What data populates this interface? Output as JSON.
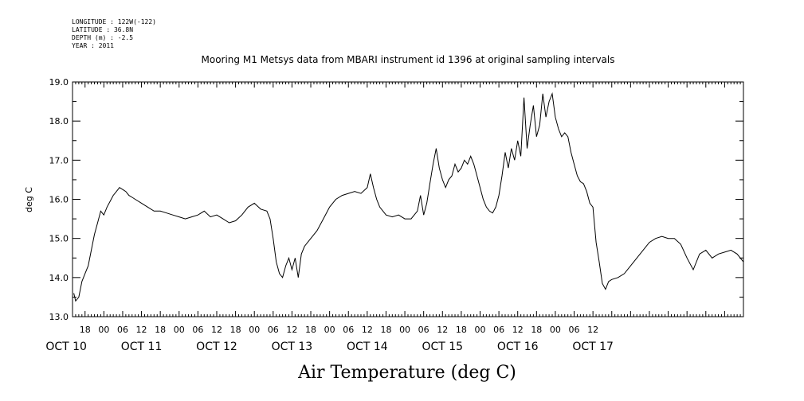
{
  "header": {
    "longitude": "LONGITUDE : 122W(-122)",
    "latitude": "LATITUDE : 36.8N",
    "depth": "DEPTH (m) : -2.5",
    "year": "YEAR : 2011"
  },
  "chart_data": {
    "type": "line",
    "title": "Mooring M1 Metsys data from MBARI instrument id 1396 at original sampling intervals",
    "ylabel": "deg C",
    "xlabel": "Air Temperature (deg C)",
    "ylim": [
      13.0,
      19.0
    ],
    "yticks": [
      "13.0",
      "14.0",
      "15.0",
      "16.0",
      "17.0",
      "18.0",
      "19.0"
    ],
    "xlim_hours": [
      -10,
      204
    ],
    "hour_ticks": [
      "18",
      "00",
      "06",
      "12",
      "18",
      "00",
      "06",
      "12",
      "18",
      "00",
      "06",
      "12",
      "18",
      "00",
      "06",
      "12",
      "18",
      "00",
      "06",
      "12",
      "18",
      "00",
      "06",
      "12",
      "18",
      "00",
      "06",
      "12"
    ],
    "date_labels": [
      "OCT 10",
      "OCT 11",
      "OCT 12",
      "OCT 13",
      "OCT 14",
      "OCT 15",
      "OCT 16",
      "OCT 17"
    ],
    "series": [
      {
        "values": [
          [
            -9.6,
            13.6
          ],
          [
            -9,
            13.4
          ],
          [
            -8,
            13.5
          ],
          [
            -7,
            13.9
          ],
          [
            -6,
            14.1
          ],
          [
            -5,
            14.3
          ],
          [
            -4,
            14.7
          ],
          [
            -3,
            15.1
          ],
          [
            -2,
            15.4
          ],
          [
            -1,
            15.7
          ],
          [
            0,
            15.6
          ],
          [
            1,
            15.8
          ],
          [
            2,
            15.95
          ],
          [
            3,
            16.1
          ],
          [
            4,
            16.2
          ],
          [
            5,
            16.3
          ],
          [
            6,
            16.25
          ],
          [
            7,
            16.2
          ],
          [
            8,
            16.1
          ],
          [
            9,
            16.05
          ],
          [
            10,
            16.0
          ],
          [
            12,
            15.9
          ],
          [
            14,
            15.8
          ],
          [
            16,
            15.7
          ],
          [
            18,
            15.7
          ],
          [
            20,
            15.65
          ],
          [
            22,
            15.6
          ],
          [
            24,
            15.55
          ],
          [
            26,
            15.5
          ],
          [
            28,
            15.55
          ],
          [
            30,
            15.6
          ],
          [
            32,
            15.7
          ],
          [
            34,
            15.55
          ],
          [
            36,
            15.6
          ],
          [
            38,
            15.5
          ],
          [
            40,
            15.4
          ],
          [
            42,
            15.45
          ],
          [
            44,
            15.6
          ],
          [
            46,
            15.8
          ],
          [
            48,
            15.9
          ],
          [
            50,
            15.75
          ],
          [
            52,
            15.7
          ],
          [
            53,
            15.5
          ],
          [
            54,
            15.0
          ],
          [
            55,
            14.4
          ],
          [
            56,
            14.1
          ],
          [
            57,
            14.0
          ],
          [
            58,
            14.3
          ],
          [
            59,
            14.5
          ],
          [
            60,
            14.2
          ],
          [
            61,
            14.5
          ],
          [
            62,
            14.0
          ],
          [
            63,
            14.6
          ],
          [
            64,
            14.8
          ],
          [
            66,
            15.0
          ],
          [
            68,
            15.2
          ],
          [
            70,
            15.5
          ],
          [
            72,
            15.8
          ],
          [
            74,
            16.0
          ],
          [
            76,
            16.1
          ],
          [
            78,
            16.15
          ],
          [
            80,
            16.2
          ],
          [
            82,
            16.15
          ],
          [
            84,
            16.3
          ],
          [
            85,
            16.65
          ],
          [
            86,
            16.3
          ],
          [
            87,
            16.0
          ],
          [
            88,
            15.8
          ],
          [
            90,
            15.6
          ],
          [
            92,
            15.55
          ],
          [
            94,
            15.6
          ],
          [
            96,
            15.5
          ],
          [
            98,
            15.5
          ],
          [
            100,
            15.7
          ],
          [
            101,
            16.1
          ],
          [
            102,
            15.6
          ],
          [
            103,
            15.9
          ],
          [
            104,
            16.4
          ],
          [
            105,
            16.9
          ],
          [
            106,
            17.3
          ],
          [
            107,
            16.8
          ],
          [
            108,
            16.5
          ],
          [
            109,
            16.3
          ],
          [
            110,
            16.5
          ],
          [
            111,
            16.6
          ],
          [
            112,
            16.9
          ],
          [
            113,
            16.7
          ],
          [
            114,
            16.8
          ],
          [
            115,
            17.0
          ],
          [
            116,
            16.9
          ],
          [
            117,
            17.1
          ],
          [
            118,
            16.9
          ],
          [
            119,
            16.6
          ],
          [
            120,
            16.3
          ],
          [
            121,
            16.0
          ],
          [
            122,
            15.8
          ],
          [
            123,
            15.7
          ],
          [
            124,
            15.65
          ],
          [
            125,
            15.8
          ],
          [
            126,
            16.1
          ],
          [
            127,
            16.6
          ],
          [
            128,
            17.2
          ],
          [
            129,
            16.8
          ],
          [
            130,
            17.3
          ],
          [
            131,
            17.0
          ],
          [
            132,
            17.5
          ],
          [
            133,
            17.1
          ],
          [
            134,
            18.6
          ],
          [
            135,
            17.3
          ],
          [
            136,
            17.9
          ],
          [
            137,
            18.4
          ],
          [
            138,
            17.6
          ],
          [
            139,
            17.9
          ],
          [
            140,
            18.7
          ],
          [
            141,
            18.1
          ],
          [
            142,
            18.5
          ],
          [
            143,
            18.7
          ],
          [
            144,
            18.1
          ],
          [
            145,
            17.8
          ],
          [
            146,
            17.6
          ],
          [
            147,
            17.7
          ],
          [
            148,
            17.6
          ],
          [
            149,
            17.2
          ],
          [
            150,
            16.9
          ],
          [
            151,
            16.6
          ],
          [
            152,
            16.45
          ],
          [
            153,
            16.4
          ],
          [
            154,
            16.2
          ],
          [
            155,
            15.9
          ],
          [
            156,
            15.8
          ],
          [
            157,
            14.9
          ],
          [
            158,
            14.4
          ],
          [
            159,
            13.85
          ],
          [
            160,
            13.7
          ],
          [
            161,
            13.9
          ],
          [
            162,
            13.95
          ],
          [
            164,
            14.0
          ],
          [
            166,
            14.1
          ],
          [
            168,
            14.3
          ],
          [
            170,
            14.5
          ],
          [
            172,
            14.7
          ],
          [
            174,
            14.9
          ],
          [
            176,
            15.0
          ],
          [
            178,
            15.05
          ],
          [
            180,
            15.0
          ],
          [
            182,
            15.0
          ],
          [
            184,
            14.85
          ],
          [
            186,
            14.5
          ],
          [
            188,
            14.2
          ],
          [
            190,
            14.6
          ],
          [
            192,
            14.7
          ],
          [
            194,
            14.5
          ],
          [
            196,
            14.6
          ],
          [
            198,
            14.65
          ],
          [
            200,
            14.7
          ],
          [
            202,
            14.6
          ],
          [
            204,
            14.4
          ]
        ]
      }
    ]
  }
}
